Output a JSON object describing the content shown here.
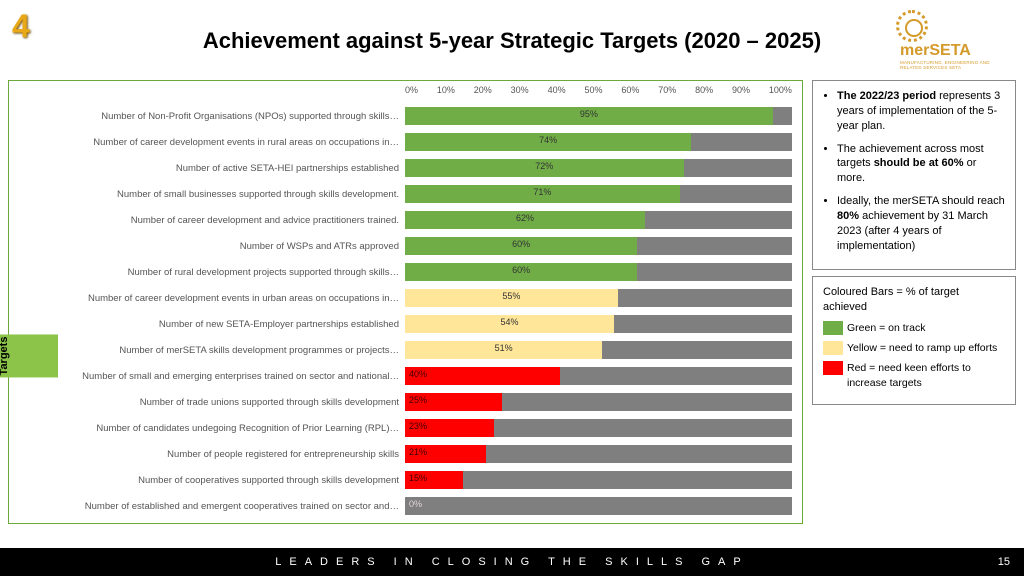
{
  "slide_number": "4",
  "page_number": "15",
  "title": "Achievement against 5-year Strategic Targets (2020 – 2025)",
  "logo": {
    "brand": "merSETA",
    "sub": "MANUFACTURING, ENGINEERING AND RELATED SERVICES SETA"
  },
  "footer_tagline": "LEADERS IN CLOSING THE SKILLS GAP",
  "chart": {
    "type": "bar",
    "orientation": "horizontal",
    "y_axis_label": "Targets",
    "xlim": [
      0,
      100
    ],
    "xtick_step": 10,
    "xticks": [
      "0%",
      "10%",
      "20%",
      "30%",
      "40%",
      "50%",
      "60%",
      "70%",
      "80%",
      "90%",
      "100%"
    ],
    "track_color": "#7f7f7f",
    "colors": {
      "green": "#70ad47",
      "yellow": "#ffe699",
      "red": "#ff0000"
    },
    "label_fontsize": 9.5,
    "tick_fontsize": 9,
    "pct_fontsize": 9,
    "bars": [
      {
        "label": "Number of Non-Profit Organisations (NPOs) supported through skills…",
        "value": 95,
        "color": "green"
      },
      {
        "label": "Number of career development events in rural areas on occupations in…",
        "value": 74,
        "color": "green"
      },
      {
        "label": "Number of active SETA-HEI partnerships established",
        "value": 72,
        "color": "green"
      },
      {
        "label": "Number of small businesses supported through skills development.",
        "value": 71,
        "color": "green"
      },
      {
        "label": "Number of career development and advice practitioners trained.",
        "value": 62,
        "color": "green"
      },
      {
        "label": "Number of WSPs and ATRs approved",
        "value": 60,
        "color": "green"
      },
      {
        "label": "Number of rural development projects supported through skills…",
        "value": 60,
        "color": "green"
      },
      {
        "label": "Number of career development events in urban areas on occupations in…",
        "value": 55,
        "color": "yellow"
      },
      {
        "label": "Number of new SETA-Employer partnerships established",
        "value": 54,
        "color": "yellow"
      },
      {
        "label": "Number of merSETA skills development programmes or projects…",
        "value": 51,
        "color": "yellow"
      },
      {
        "label": "Number of small and emerging enterprises trained on sector and national…",
        "value": 40,
        "color": "red"
      },
      {
        "label": "Number of trade unions supported through skills development",
        "value": 25,
        "color": "red"
      },
      {
        "label": "Number of candidates undegoing Recognition of Prior Learning (RPL)…",
        "value": 23,
        "color": "red"
      },
      {
        "label": "Number of people registered for entrepreneurship skills",
        "value": 21,
        "color": "red"
      },
      {
        "label": "Number of cooperatives supported through skills  development",
        "value": 15,
        "color": "red"
      },
      {
        "label": "Number of established and emergent cooperatives trained on sector and…",
        "value": 0,
        "color": "red"
      }
    ]
  },
  "notes": {
    "items": [
      {
        "pre_bold": "The 2022/23 period",
        "rest": " represents 3 years of implementation of the 5-year plan."
      },
      {
        "pre": "The achievement across most targets ",
        "bold": "should be at 60%",
        "post": " or more."
      },
      {
        "pre": "Ideally, the merSETA should reach ",
        "bold": "80%",
        "post": " achievement by 31 March 2023 (after 4 years of implementation)"
      }
    ]
  },
  "legend": {
    "title": "Coloured Bars = % of target achieved",
    "items": [
      {
        "color": "#70ad47",
        "label": "Green = on track"
      },
      {
        "color": "#ffe699",
        "label": "Yellow = need to ramp up efforts"
      },
      {
        "color": "#ff0000",
        "label": "Red = need keen efforts to increase targets"
      }
    ]
  }
}
